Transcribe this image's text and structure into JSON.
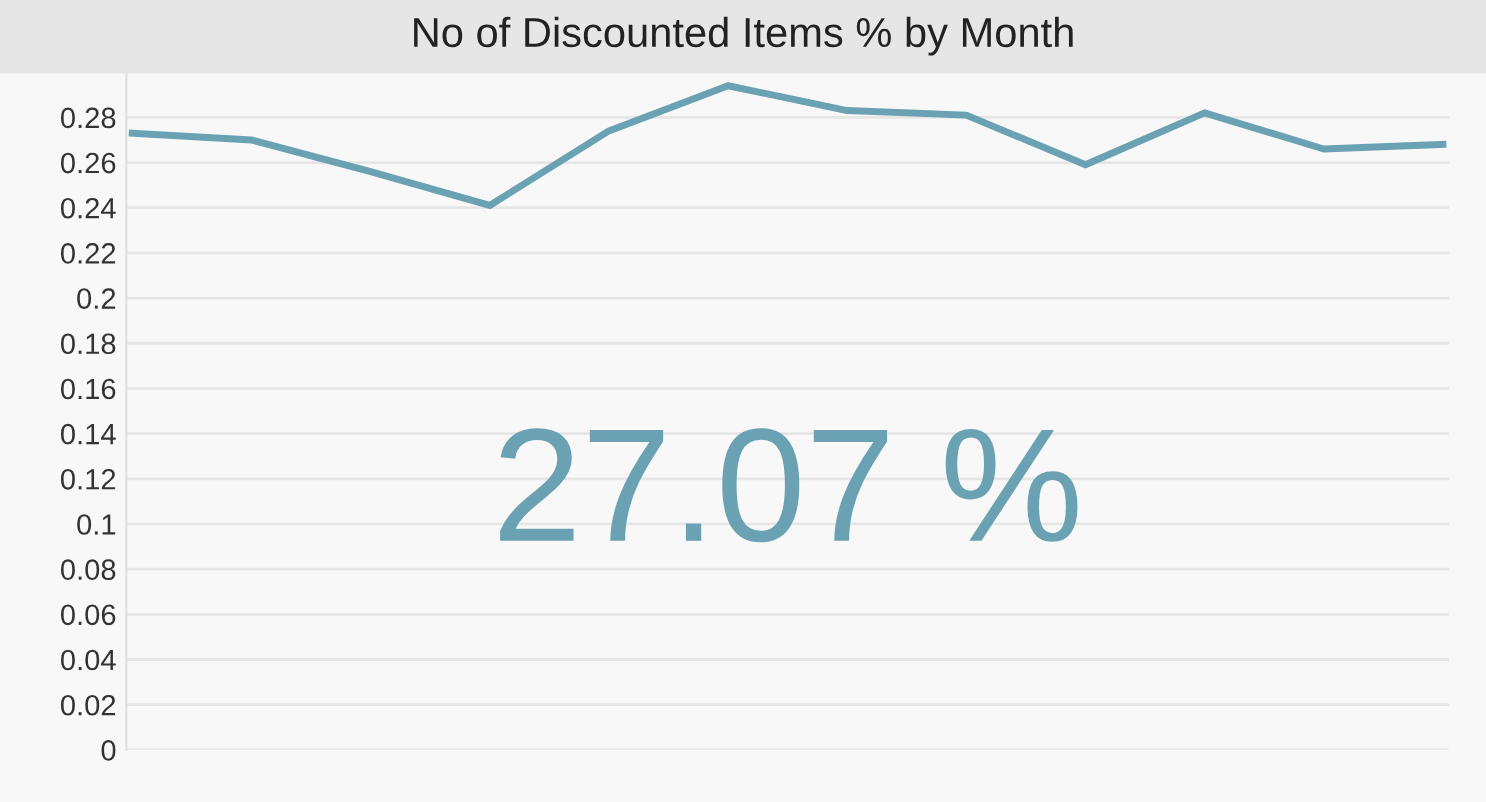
{
  "chart_data": {
    "type": "line",
    "title": "No of Discounted Items % by Month",
    "categories": [
      null,
      null,
      null,
      null,
      null,
      null,
      null,
      null,
      null,
      null,
      null,
      null
    ],
    "series": [
      {
        "color": "#6aa2b4",
        "values": [
          0.273,
          0.27,
          0.256,
          0.241,
          0.274,
          0.294,
          0.283,
          0.281,
          0.259,
          0.282,
          0.266,
          0.268
        ]
      }
    ],
    "ylim": [
      0,
      0.3
    ],
    "yticks": [
      0,
      0.02,
      0.04,
      0.06,
      0.08,
      0.1,
      0.12,
      0.14,
      0.16,
      0.18,
      0.2,
      0.22,
      0.24,
      0.26,
      0.28
    ],
    "grid": "y",
    "legend": false,
    "marker": "none",
    "line_style": "solid",
    "annotations": [
      "27.07 %"
    ]
  }
}
